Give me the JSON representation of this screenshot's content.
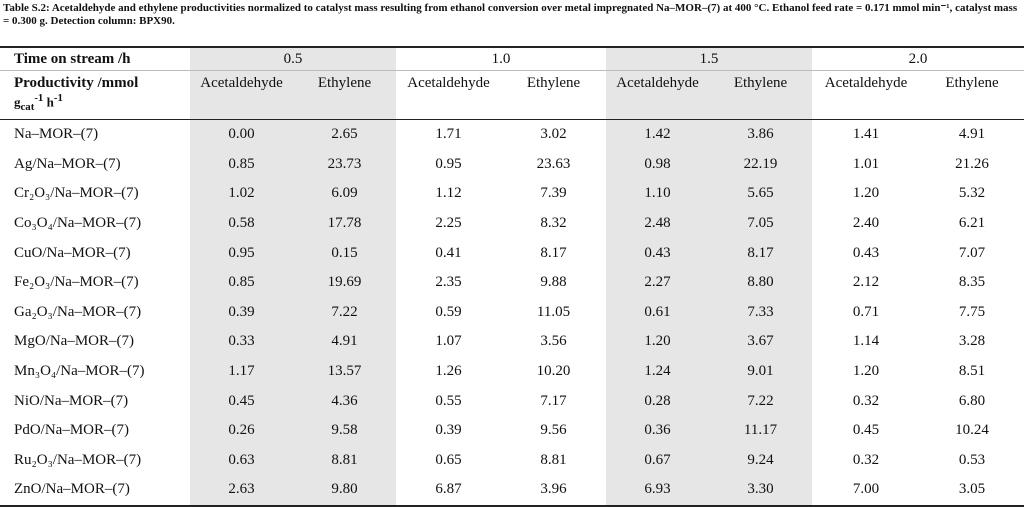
{
  "caption": {
    "label": "Table S.2:",
    "text": "Acetaldehyde and ethylene productivities normalized to catalyst mass resulting from ethanol conversion over metal impregnated Na–MOR–(7) at 400 °C. Ethanol feed rate = 0.171 mmol min⁻¹, catalyst mass = 0.300 g. Detection column: BPX90."
  },
  "table": {
    "time_label": "Time on stream /h",
    "times": [
      "0.5",
      "1.0",
      "1.5",
      "2.0"
    ],
    "productivity_label": "Productivity /mmol",
    "unit": {
      "g": "g",
      "sub": "cat",
      "exp1": "-1",
      "h": "h",
      "exp2": "-1"
    },
    "columns": [
      "Acetaldehyde",
      "Ethylene"
    ],
    "rows": [
      [
        "Na–MOR–(7)",
        "0.00",
        "2.65",
        "1.71",
        "3.02",
        "1.42",
        "3.86",
        "1.41",
        "4.91"
      ],
      [
        "Ag/Na–MOR–(7)",
        "0.85",
        "23.73",
        "0.95",
        "23.63",
        "0.98",
        "22.19",
        "1.01",
        "21.26"
      ],
      [
        "Cr₂O₃/Na–MOR–(7)",
        "1.02",
        "6.09",
        "1.12",
        "7.39",
        "1.10",
        "5.65",
        "1.20",
        "5.32"
      ],
      [
        "Co₃O₄/Na–MOR–(7)",
        "0.58",
        "17.78",
        "2.25",
        "8.32",
        "2.48",
        "7.05",
        "2.40",
        "6.21"
      ],
      [
        "CuO/Na–MOR–(7)",
        "0.95",
        "0.15",
        "0.41",
        "8.17",
        "0.43",
        "8.17",
        "0.43",
        "7.07"
      ],
      [
        "Fe₂O₃/Na–MOR–(7)",
        "0.85",
        "19.69",
        "2.35",
        "9.88",
        "2.27",
        "8.80",
        "2.12",
        "8.35"
      ],
      [
        "Ga₂O₃/Na–MOR–(7)",
        "0.39",
        "7.22",
        "0.59",
        "11.05",
        "0.61",
        "7.33",
        "0.71",
        "7.75"
      ],
      [
        "MgO/Na–MOR–(7)",
        "0.33",
        "4.91",
        "1.07",
        "3.56",
        "1.20",
        "3.67",
        "1.14",
        "3.28"
      ],
      [
        "Mn₃O₄/Na–MOR–(7)",
        "1.17",
        "13.57",
        "1.26",
        "10.20",
        "1.24",
        "9.01",
        "1.20",
        "8.51"
      ],
      [
        "NiO/Na–MOR–(7)",
        "0.45",
        "4.36",
        "0.55",
        "7.17",
        "0.28",
        "7.22",
        "0.32",
        "6.80"
      ],
      [
        "PdO/Na–MOR–(7)",
        "0.26",
        "9.58",
        "0.39",
        "9.56",
        "0.36",
        "11.17",
        "0.45",
        "10.24"
      ],
      [
        "Ru₂O₃/Na–MOR–(7)",
        "0.63",
        "8.81",
        "0.65",
        "8.81",
        "0.67",
        "9.24",
        "0.32",
        "0.53"
      ],
      [
        "ZnO/Na–MOR–(7)",
        "2.63",
        "9.80",
        "6.87",
        "3.96",
        "6.93",
        "3.30",
        "7.00",
        "3.05"
      ]
    ]
  }
}
